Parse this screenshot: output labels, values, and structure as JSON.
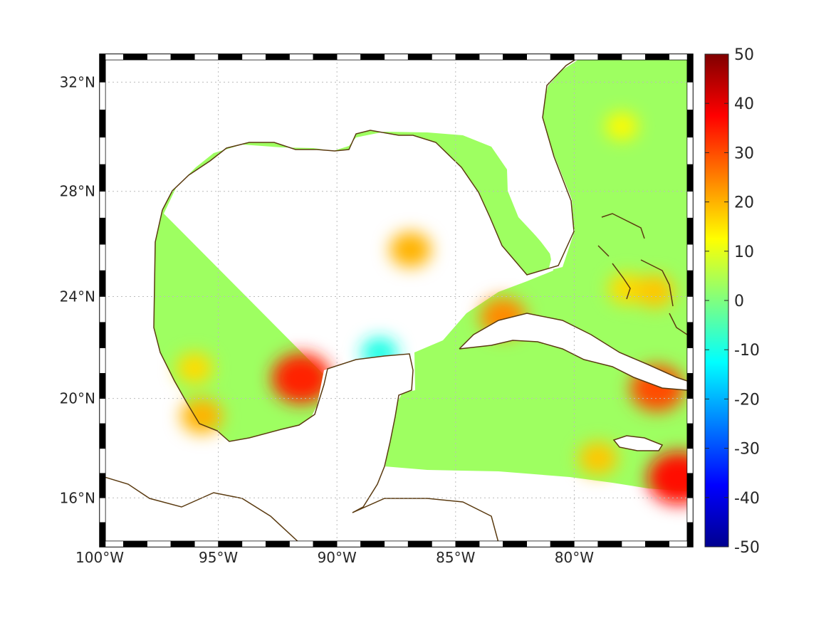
{
  "map": {
    "projection": "mercator",
    "lon_range": [
      -100,
      -75
    ],
    "lat_range": [
      14,
      33
    ],
    "lon_ticks": [
      {
        "value": -100,
        "label": "100°W"
      },
      {
        "value": -95,
        "label": "95°W"
      },
      {
        "value": -90,
        "label": "90°W"
      },
      {
        "value": -85,
        "label": "85°W"
      },
      {
        "value": -80,
        "label": "80°W"
      }
    ],
    "lat_ticks": [
      {
        "value": 32,
        "label": "32°N"
      },
      {
        "value": 28,
        "label": "28°N"
      },
      {
        "value": 24,
        "label": "24°N"
      },
      {
        "value": 20,
        "label": "20°N"
      },
      {
        "value": 16,
        "label": "16°N"
      }
    ],
    "grid": true,
    "grid_style": "dotted",
    "coastline_color": "#5a3a10",
    "field_background_value": 3,
    "hotspots": [
      {
        "lon": -91.5,
        "lat": 20.8,
        "value": 34
      },
      {
        "lon": -96.0,
        "lat": 21.2,
        "value": 16
      },
      {
        "lon": -95.7,
        "lat": 19.3,
        "value": 20
      },
      {
        "lon": -88.2,
        "lat": 21.8,
        "value": -10
      },
      {
        "lon": -83.0,
        "lat": 23.2,
        "value": 24
      },
      {
        "lon": -86.9,
        "lat": 25.8,
        "value": 20
      },
      {
        "lon": -76.5,
        "lat": 20.4,
        "value": 30
      },
      {
        "lon": -75.6,
        "lat": 16.8,
        "value": 36
      },
      {
        "lon": -79.0,
        "lat": 17.6,
        "value": 18
      },
      {
        "lon": -77.8,
        "lat": 24.3,
        "value": 16
      },
      {
        "lon": -76.6,
        "lat": 24.2,
        "value": 18
      },
      {
        "lon": -78.0,
        "lat": 30.4,
        "value": 13
      }
    ]
  },
  "colorbar": {
    "colormap": "jet",
    "min": -50,
    "max": 50,
    "tick_labels": [
      "50",
      "40",
      "30",
      "20",
      "10",
      "0",
      "-10",
      "-20",
      "-30",
      "-40",
      "-50"
    ],
    "stops": [
      "#00008f",
      "#0000ff",
      "#00ffff",
      "#ffff00",
      "#ff0000",
      "#800000"
    ]
  }
}
